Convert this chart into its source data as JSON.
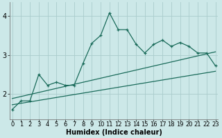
{
  "xlabel": "Humidex (Indice chaleur)",
  "bg_color": "#cce8e8",
  "grid_color": "#aacccc",
  "line_color": "#1a6b5a",
  "x_ticks": [
    0,
    1,
    2,
    3,
    4,
    5,
    6,
    7,
    8,
    9,
    10,
    11,
    12,
    13,
    14,
    15,
    16,
    17,
    18,
    19,
    20,
    21,
    22,
    23
  ],
  "xlim": [
    -0.3,
    23.3
  ],
  "ylim": [
    1.35,
    4.35
  ],
  "main_x": [
    0,
    1,
    2,
    3,
    4,
    5,
    6,
    7,
    8,
    9,
    10,
    11,
    12,
    13,
    14,
    15,
    16,
    17,
    18,
    19,
    20,
    21,
    22,
    23
  ],
  "main_y": [
    1.6,
    1.82,
    1.82,
    2.5,
    2.22,
    2.3,
    2.22,
    2.22,
    2.78,
    3.3,
    3.5,
    4.08,
    3.65,
    3.65,
    3.28,
    3.05,
    3.27,
    3.38,
    3.22,
    3.32,
    3.22,
    3.05,
    3.05,
    2.72
  ],
  "line1_x": [
    0,
    23
  ],
  "line1_y": [
    1.72,
    2.58
  ],
  "line2_x": [
    0,
    23
  ],
  "line2_y": [
    1.88,
    3.08
  ],
  "xlabel_fontsize": 7,
  "tick_fontsize": 6,
  "ytick_fontsize": 7,
  "yticks": [
    2,
    3,
    4
  ],
  "ytick_labels": [
    "2",
    "3",
    "4"
  ]
}
